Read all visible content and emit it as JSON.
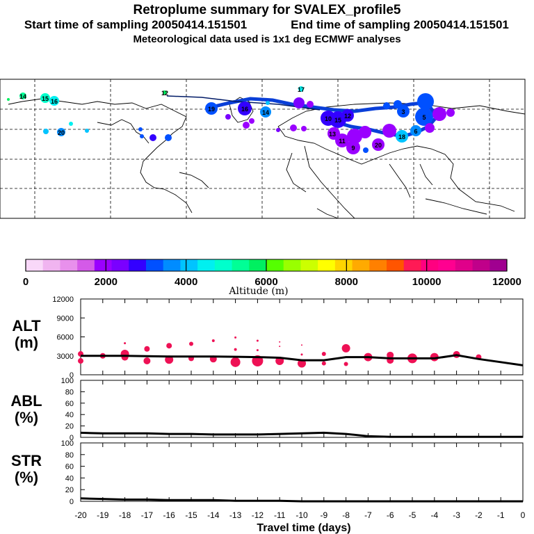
{
  "header": {
    "title": "Retroplume summary for SVALEX_profile5",
    "start_label": "Start time of sampling 20050414.151501",
    "end_label": "End time of sampling 20050414.151501",
    "met_label": "Meteorological data used is 1x1 deg ECMWF analyses"
  },
  "colors": {
    "marker": "#ee1155",
    "line": "#000000",
    "track": "#0a3fd8",
    "colorbar": [
      "#f9d8f9",
      "#f0b4f0",
      "#e890ec",
      "#d45ae8",
      "#9a00ff",
      "#7a00ff",
      "#3300ff",
      "#0050ff",
      "#008cff",
      "#00c4ff",
      "#00f0f0",
      "#00ffcc",
      "#00ff96",
      "#00f060",
      "#55ff00",
      "#99ff00",
      "#ccff00",
      "#ffff00",
      "#ffd500",
      "#ffaa00",
      "#ff8000",
      "#ff5500",
      "#ff1a55",
      "#ff0080",
      "#ff0090",
      "#e0008a",
      "#c0008a",
      "#a00090"
    ]
  },
  "map": {
    "labels": [
      {
        "t": "14",
        "c": "#00ff96"
      },
      {
        "t": "15",
        "c": "#00ffcc"
      },
      {
        "t": "16",
        "c": "#00f0f0"
      },
      {
        "t": "17",
        "c": "#00f0f0"
      },
      {
        "t": "19",
        "c": "#0050ff"
      },
      {
        "t": "16",
        "c": "#3300ff"
      },
      {
        "t": "14",
        "c": "#008cff"
      },
      {
        "t": "5",
        "c": "#3300ff"
      },
      {
        "t": "10",
        "c": "#7a00ff"
      },
      {
        "t": "15",
        "c": "#9a00ff"
      },
      {
        "t": "13",
        "c": "#9a00ff"
      },
      {
        "t": "11",
        "c": "#9a00ff"
      },
      {
        "t": "9",
        "c": "#9a00ff"
      },
      {
        "t": "20",
        "c": "#0050ff"
      },
      {
        "t": "3",
        "c": "#0050ff"
      },
      {
        "t": "6",
        "c": "#008cff"
      },
      {
        "t": "18",
        "c": "#00c4ff"
      },
      {
        "t": "20",
        "c": "#0050ff"
      },
      {
        "t": "12",
        "c": "#00ff96"
      },
      {
        "t": "12",
        "c": "#3300ff"
      }
    ]
  },
  "colorbar": {
    "ticks": [
      "0",
      "2000",
      "4000",
      "6000",
      "8000",
      "10000",
      "12000"
    ],
    "label": "Altitude (m)"
  },
  "panels": {
    "alt": {
      "label1": "ALT",
      "label2": "(m)"
    },
    "abl": {
      "label1": "ABL",
      "label2": "(%)"
    },
    "str": {
      "label1": "STR",
      "label2": "(%)"
    }
  },
  "chart_data": [
    {
      "type": "line",
      "title": "ALT (m)",
      "x": [
        -20,
        -19,
        -18,
        -17,
        -16,
        -15,
        -14,
        -13,
        -12,
        -11,
        -10,
        -9,
        -8,
        -7,
        -6,
        -5,
        -4,
        -3,
        -2,
        -1,
        0
      ],
      "ylim": [
        0,
        12000
      ],
      "yticks": [
        "0",
        "3000",
        "6000",
        "9000",
        "12000"
      ],
      "series": [
        {
          "name": "mean altitude",
          "values": [
            3000,
            3000,
            3000,
            2950,
            2900,
            2900,
            2900,
            2850,
            2800,
            2700,
            2300,
            2300,
            2800,
            2800,
            2600,
            2600,
            2600,
            3100,
            2500,
            2000,
            1500
          ]
        }
      ],
      "markers": [
        {
          "x": -20,
          "y": 3300,
          "s": 4
        },
        {
          "x": -20,
          "y": 2200,
          "s": 4
        },
        {
          "x": -19,
          "y": 3000,
          "s": 4
        },
        {
          "x": -18,
          "y": 3300,
          "s": 6
        },
        {
          "x": -18,
          "y": 2800,
          "s": 5
        },
        {
          "x": -18,
          "y": 5000,
          "s": 1.5
        },
        {
          "x": -17,
          "y": 4100,
          "s": 4
        },
        {
          "x": -17,
          "y": 2200,
          "s": 5
        },
        {
          "x": -16,
          "y": 4600,
          "s": 4
        },
        {
          "x": -16,
          "y": 2400,
          "s": 6
        },
        {
          "x": -15,
          "y": 4900,
          "s": 3
        },
        {
          "x": -15,
          "y": 2600,
          "s": 4
        },
        {
          "x": -14,
          "y": 5400,
          "s": 2
        },
        {
          "x": -14,
          "y": 2500,
          "s": 5
        },
        {
          "x": -13,
          "y": 5900,
          "s": 1.5
        },
        {
          "x": -13,
          "y": 4000,
          "s": 2
        },
        {
          "x": -13,
          "y": 2000,
          "s": 7
        },
        {
          "x": -12,
          "y": 5400,
          "s": 1.5
        },
        {
          "x": -12,
          "y": 3900,
          "s": 1.5
        },
        {
          "x": -12,
          "y": 2200,
          "s": 8
        },
        {
          "x": -11,
          "y": 5200,
          "s": 1
        },
        {
          "x": -11,
          "y": 4500,
          "s": 1
        },
        {
          "x": -11,
          "y": 2200,
          "s": 6
        },
        {
          "x": -10,
          "y": 4700,
          "s": 1
        },
        {
          "x": -10,
          "y": 3200,
          "s": 1.5
        },
        {
          "x": -10,
          "y": 1800,
          "s": 6
        },
        {
          "x": -9,
          "y": 3300,
          "s": 3
        },
        {
          "x": -9,
          "y": 1800,
          "s": 3
        },
        {
          "x": -8,
          "y": 4200,
          "s": 6
        },
        {
          "x": -8,
          "y": 1700,
          "s": 3
        },
        {
          "x": -7,
          "y": 2800,
          "s": 6
        },
        {
          "x": -6,
          "y": 3100,
          "s": 5
        },
        {
          "x": -6,
          "y": 2300,
          "s": 5
        },
        {
          "x": -5,
          "y": 2600,
          "s": 7
        },
        {
          "x": -4,
          "y": 2800,
          "s": 6
        },
        {
          "x": -3,
          "y": 3200,
          "s": 5
        },
        {
          "x": -2,
          "y": 2800,
          "s": 4
        }
      ]
    },
    {
      "type": "line",
      "title": "ABL (%)",
      "x": [
        -20,
        -19,
        -18,
        -17,
        -16,
        -15,
        -14,
        -13,
        -12,
        -11,
        -10,
        -9,
        -8,
        -7,
        -6,
        -5,
        -4,
        -3,
        -2,
        -1,
        0
      ],
      "ylim": [
        0,
        100
      ],
      "yticks": [
        "0",
        "20",
        "40",
        "60",
        "80",
        "100"
      ],
      "series": [
        {
          "name": "ABL fraction",
          "values": [
            8,
            7,
            7,
            7,
            6,
            6,
            5,
            5,
            5,
            6,
            7,
            8,
            6,
            2,
            1,
            1,
            1,
            1,
            1,
            1,
            1
          ]
        }
      ]
    },
    {
      "type": "line",
      "title": "STR (%)",
      "x": [
        -20,
        -19,
        -18,
        -17,
        -16,
        -15,
        -14,
        -13,
        -12,
        -11,
        -10,
        -9,
        -8,
        -7,
        -6,
        -5,
        -4,
        -3,
        -2,
        -1,
        0
      ],
      "xlabel": "Travel time (days)",
      "xticks": [
        "-20",
        "-19",
        "-18",
        "-17",
        "-16",
        "-15",
        "-14",
        "-13",
        "-12",
        "-11",
        "-10",
        "-9",
        "-8",
        "-7",
        "-6",
        "-5",
        "-4",
        "-3",
        "-2",
        "-1",
        "0"
      ],
      "ylim": [
        0,
        100
      ],
      "yticks": [
        "0",
        "20",
        "40",
        "60",
        "80",
        "100"
      ],
      "series": [
        {
          "name": "stratospheric fraction",
          "values": [
            5,
            4,
            3,
            3,
            2,
            2,
            2,
            1,
            1,
            1,
            0,
            0,
            0,
            0,
            0,
            0,
            0,
            0,
            0,
            0,
            0
          ]
        }
      ]
    }
  ]
}
